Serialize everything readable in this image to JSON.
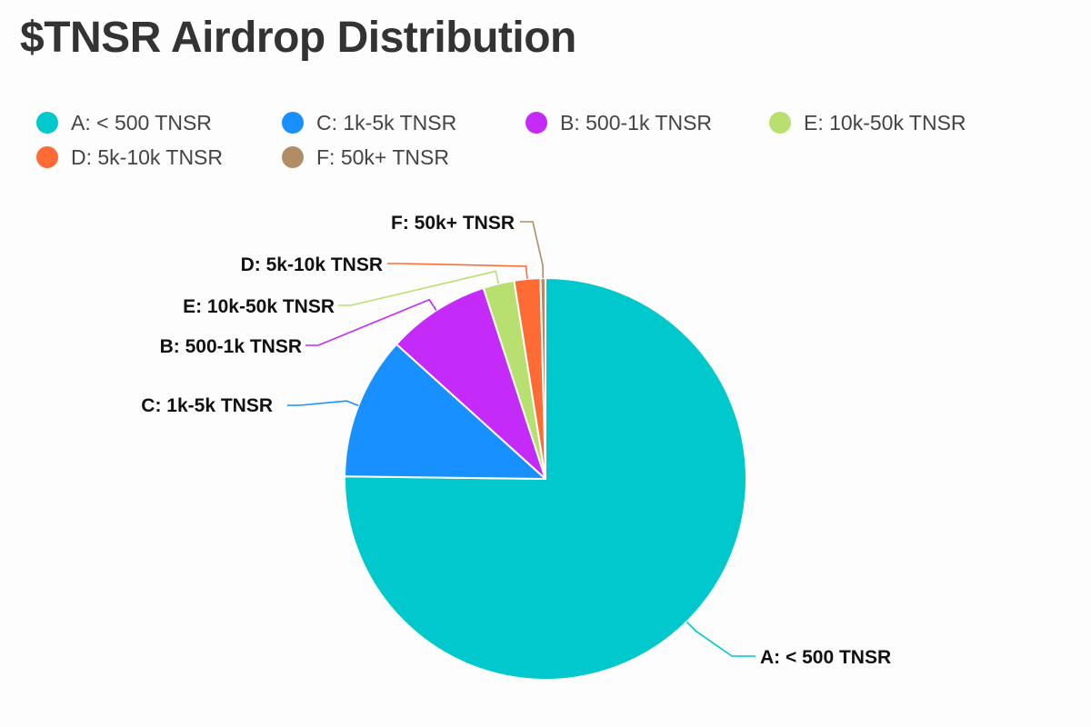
{
  "title": "$TNSR Airdrop Distribution",
  "chart_data": {
    "type": "pie",
    "title": "$TNSR Airdrop Distribution",
    "slices": [
      {
        "label": "A: < 500 TNSR",
        "value": 75.2,
        "color": "#00c8cc"
      },
      {
        "label": "C: 1k-5k TNSR",
        "value": 11.5,
        "color": "#1890ff"
      },
      {
        "label": "B: 500-1k TNSR",
        "value": 8.3,
        "color": "#c42bf8"
      },
      {
        "label": "E: 10k-50k TNSR",
        "value": 2.5,
        "color": "#b8e070"
      },
      {
        "label": "D: 5k-10k TNSR",
        "value": 2.1,
        "color": "#ff6b35"
      },
      {
        "label": "F: 50k+ TNSR",
        "value": 0.4,
        "color": "#b08d65"
      }
    ],
    "legend_position": "top-left"
  },
  "legend": [
    {
      "label": "A: < 500 TNSR",
      "color": "#00c8cc"
    },
    {
      "label": "C: 1k-5k TNSR",
      "color": "#1890ff"
    },
    {
      "label": "B: 500-1k TNSR",
      "color": "#c42bf8"
    },
    {
      "label": "E: 10k-50k TNSR",
      "color": "#b8e070"
    },
    {
      "label": "D: 5k-10k TNSR",
      "color": "#ff6b35"
    },
    {
      "label": "F: 50k+ TNSR",
      "color": "#b08d65"
    }
  ]
}
